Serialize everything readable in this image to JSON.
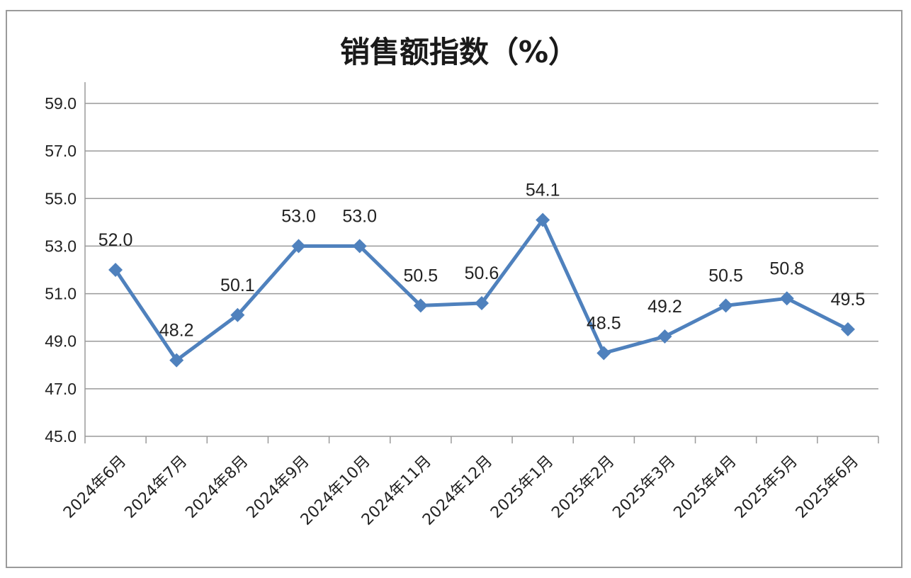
{
  "chart_data": {
    "type": "line",
    "title": "销售额指数（%）",
    "xlabel": "",
    "ylabel": "",
    "categories": [
      "2024年6月",
      "2024年7月",
      "2024年8月",
      "2024年9月",
      "2024年10月",
      "2024年11月",
      "2024年12月",
      "2025年1月",
      "2025年2月",
      "2025年3月",
      "2025年4月",
      "2025年5月",
      "2025年6月"
    ],
    "series": [
      {
        "values": [
          52.0,
          48.2,
          50.1,
          53.0,
          53.0,
          50.5,
          50.6,
          54.1,
          48.5,
          49.2,
          50.5,
          50.8,
          49.5
        ],
        "labels": [
          "52.0",
          "48.2",
          "50.1",
          "53.0",
          "53.0",
          "50.5",
          "50.6",
          "54.1",
          "48.5",
          "49.2",
          "50.5",
          "50.8",
          "49.5"
        ],
        "color": "#4f81bd",
        "marker": "diamond"
      }
    ],
    "ylim": [
      45.0,
      59.0
    ],
    "yticks": [
      "45.0",
      "47.0",
      "49.0",
      "51.0",
      "53.0",
      "55.0",
      "57.0",
      "59.0"
    ],
    "grid": true,
    "legend": "none"
  },
  "colors": {
    "series": "#4f81bd",
    "grid": "#9a9a9a",
    "frame": "#9b9b9b"
  }
}
